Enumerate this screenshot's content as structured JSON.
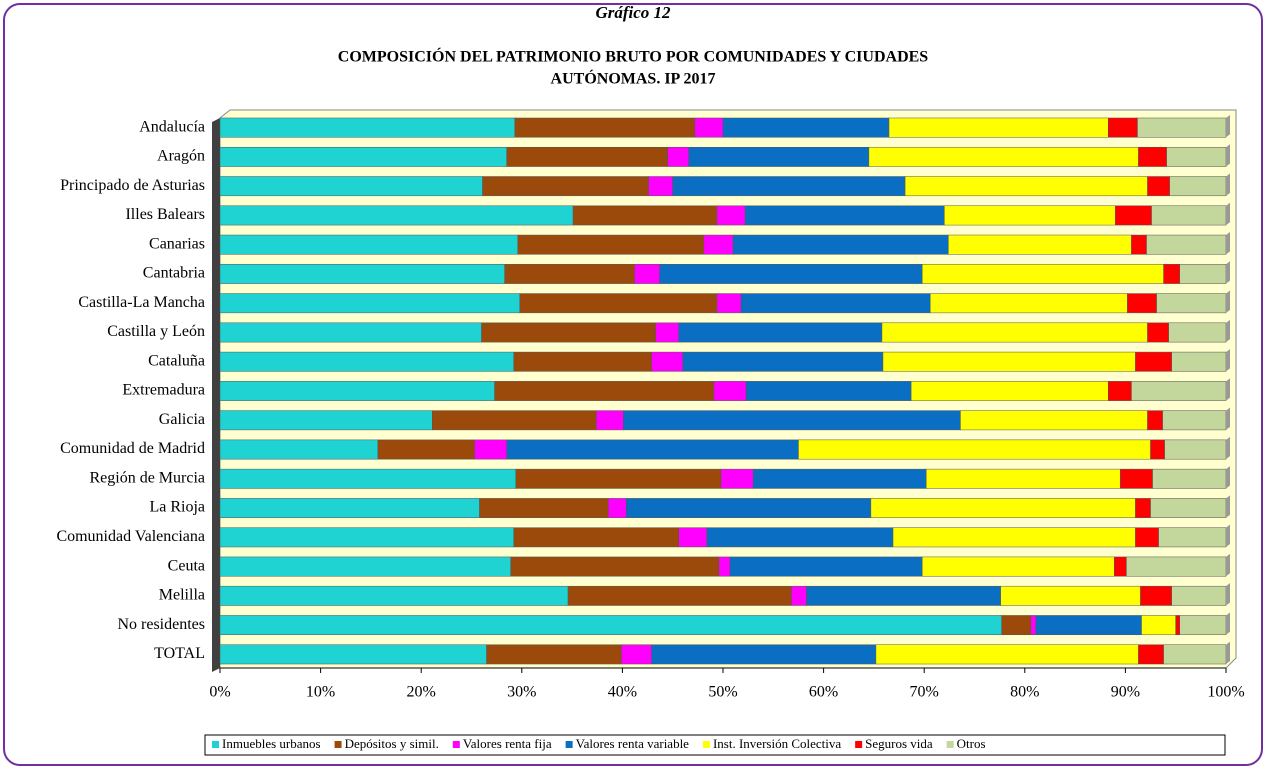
{
  "chart_data": {
    "type": "stacked-barh",
    "label": "Gráfico 12",
    "title": [
      "COMPOSICIÓN DEL PATRIMONIO  BRUTO POR COMUNIDADES Y CIUDADES",
      "AUTÓNOMAS.  IP 2017"
    ],
    "categories": [
      "Andalucía",
      "Aragón",
      "Principado de Asturias",
      "Illes Balears",
      "Canarias",
      "Cantabria",
      "Castilla-La Mancha",
      "Castilla y León",
      "Cataluña",
      "Extremadura",
      "Galicia",
      "Comunidad de Madrid",
      "Región de Murcia",
      "La Rioja",
      "Comunidad Valenciana",
      "Ceuta",
      "Melilla",
      "No residentes",
      "TOTAL"
    ],
    "series": [
      {
        "name": "Inmuebles urbanos",
        "color": "#1fd3d3",
        "values": [
          29.3,
          28.5,
          26.1,
          35.1,
          29.6,
          28.3,
          29.8,
          26.0,
          29.2,
          27.3,
          21.1,
          15.7,
          29.4,
          25.8,
          29.2,
          28.9,
          34.6,
          77.7,
          26.5
        ]
      },
      {
        "name": "Depósitos y simil.",
        "color": "#9c4a0c",
        "values": [
          17.9,
          16.0,
          16.5,
          14.3,
          18.5,
          12.9,
          19.6,
          17.3,
          13.7,
          21.8,
          16.3,
          9.6,
          20.4,
          12.8,
          16.4,
          20.7,
          22.2,
          2.9,
          13.4
        ]
      },
      {
        "name": "Valores renta fija",
        "color": "#ff00ff",
        "values": [
          2.8,
          2.1,
          2.4,
          2.8,
          2.9,
          2.5,
          2.4,
          2.3,
          3.1,
          3.2,
          2.7,
          3.2,
          3.2,
          1.8,
          2.8,
          1.1,
          1.5,
          0.5,
          3.0
        ]
      },
      {
        "name": "Valores renta variable",
        "color": "#0a6fc2",
        "values": [
          16.5,
          17.9,
          23.1,
          19.8,
          21.4,
          26.1,
          18.8,
          20.2,
          19.9,
          16.4,
          33.5,
          29.0,
          17.2,
          24.3,
          18.5,
          19.1,
          19.3,
          10.5,
          22.3
        ]
      },
      {
        "name": "Inst. Inversión Colectiva",
        "color": "#ffff00",
        "values": [
          21.8,
          26.8,
          24.1,
          17.0,
          18.2,
          24.0,
          19.6,
          26.4,
          25.1,
          19.6,
          18.6,
          35.0,
          19.3,
          26.3,
          24.1,
          19.1,
          13.9,
          3.4,
          26.1
        ]
      },
      {
        "name": "Seguros vida",
        "color": "#ff0000",
        "values": [
          2.9,
          2.8,
          2.2,
          3.6,
          1.5,
          1.6,
          2.9,
          2.1,
          3.6,
          2.3,
          1.5,
          1.4,
          3.2,
          1.5,
          2.3,
          1.2,
          3.1,
          0.4,
          2.5
        ]
      },
      {
        "name": "Otros",
        "color": "#c3d69b",
        "values": [
          8.8,
          5.9,
          5.6,
          7.4,
          7.9,
          4.6,
          6.9,
          5.7,
          5.4,
          9.4,
          6.3,
          6.1,
          7.3,
          7.5,
          6.7,
          9.9,
          5.4,
          4.6,
          6.2
        ]
      }
    ],
    "xlim": [
      0,
      100
    ],
    "xticks": [
      {
        "value": 0,
        "label": "0%"
      },
      {
        "value": 10,
        "label": "10%"
      },
      {
        "value": 20,
        "label": "20%"
      },
      {
        "value": 30,
        "label": "30%"
      },
      {
        "value": 40,
        "label": "40%"
      },
      {
        "value": 50,
        "label": "50%"
      },
      {
        "value": 60,
        "label": "60%"
      },
      {
        "value": 70,
        "label": "70%"
      },
      {
        "value": 80,
        "label": "80%"
      },
      {
        "value": 90,
        "label": "90%"
      },
      {
        "value": 100,
        "label": "100%"
      }
    ],
    "legend": "bottom"
  }
}
